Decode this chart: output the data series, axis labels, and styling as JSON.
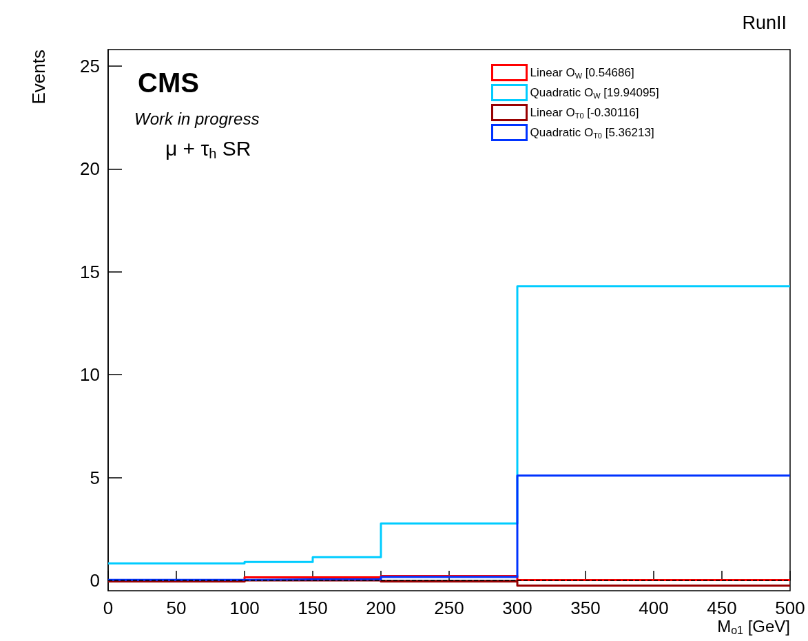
{
  "chart_data": {
    "type": "histogram",
    "title": "RunII",
    "xlabel": "M$_{o1}$ [GeV]",
    "ylabel": "Events",
    "annotations": [
      "CMS",
      "Work in progress",
      "μ + τ$_{h}$ SR"
    ],
    "bins": [
      0,
      100,
      150,
      200,
      300,
      500
    ],
    "series": [
      {
        "name": "Linear O$_{W}$ [0.54686]",
        "color": "#ff0000",
        "values": [
          -0.05,
          0.15,
          0.15,
          0.22,
          0.02
        ]
      },
      {
        "name": "Quadratic O$_{W}$ [19.94095]",
        "color": "#00ccff",
        "values": [
          0.83,
          0.9,
          1.13,
          2.77,
          14.3
        ]
      },
      {
        "name": "Linear O$_{T0}$ [-0.30116]",
        "color": "#990000",
        "values": [
          -0.05,
          0,
          0,
          -0.05,
          -0.25
        ]
      },
      {
        "name": "Quadratic O$_{T0}$ [5.36213]",
        "color": "#0033ff",
        "values": [
          0.03,
          0.05,
          0.05,
          0.17,
          5.1
        ]
      }
    ],
    "xlim": [
      0,
      500
    ],
    "xticks": [
      0,
      50,
      100,
      150,
      200,
      250,
      300,
      350,
      400,
      450,
      500
    ],
    "ylim": [
      -0.5,
      25.8
    ],
    "yticks": [
      0,
      5,
      10,
      15,
      20,
      25
    ],
    "ref_lines": [
      {
        "axis": "y",
        "value": 0,
        "color": "#000000",
        "line_style": "dashed"
      }
    ],
    "grid": false,
    "legend": "top right"
  }
}
